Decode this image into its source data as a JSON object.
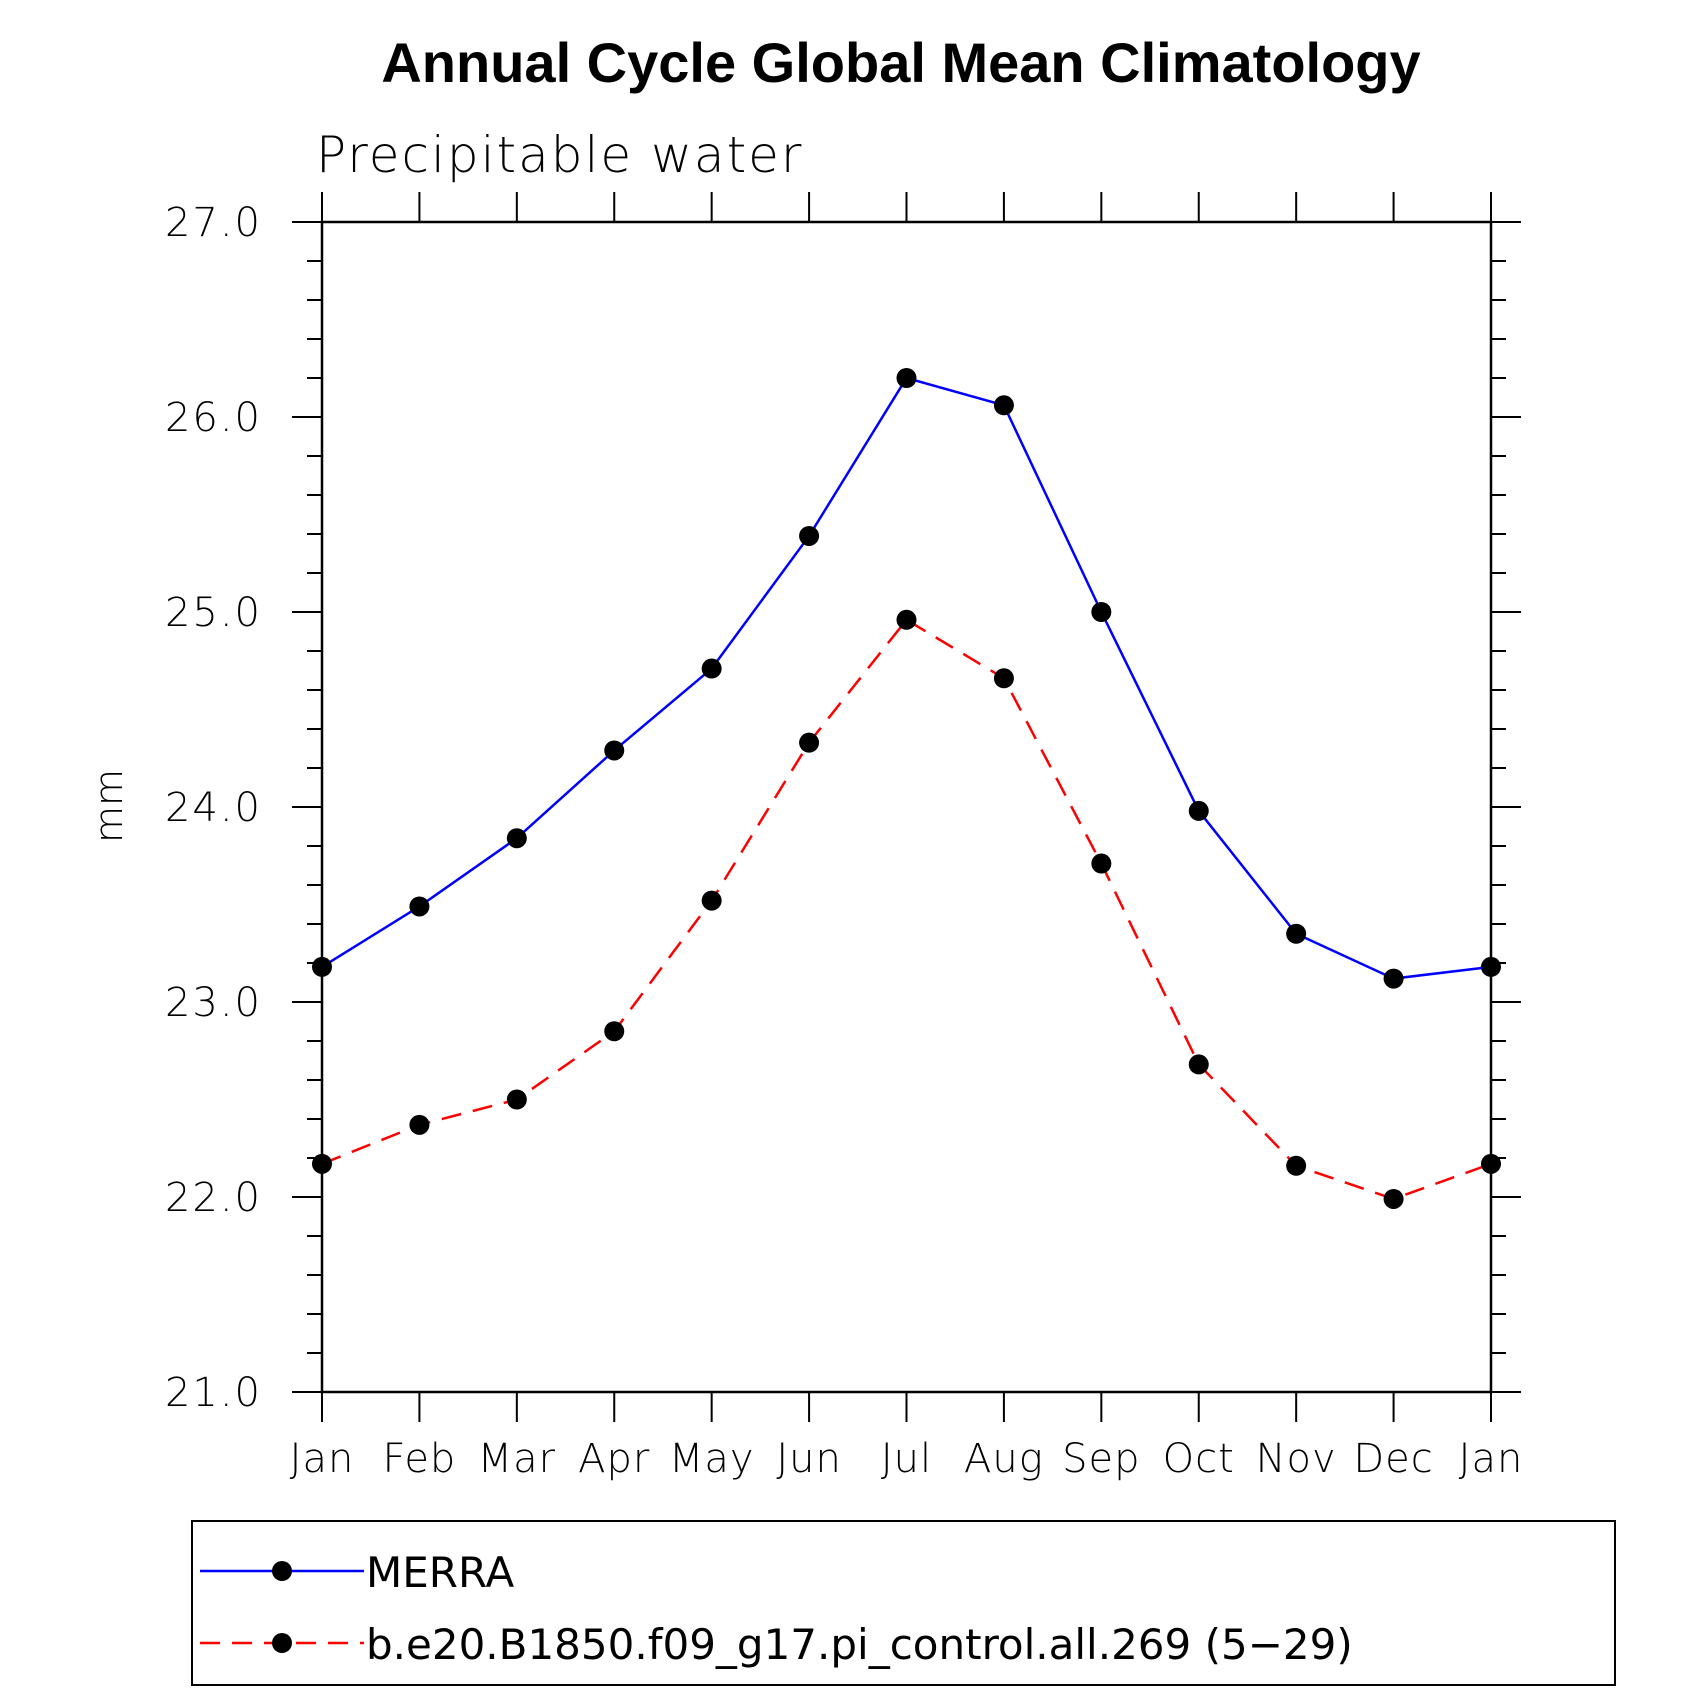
{
  "chart_data": {
    "type": "line",
    "title": "Annual Cycle Global Mean Climatology",
    "subtitle": "Precipitable water",
    "xlabel": "",
    "ylabel": "mm",
    "ylim": [
      21.0,
      27.0
    ],
    "yticks": [
      "21.0",
      "22.0",
      "23.0",
      "24.0",
      "25.0",
      "26.0",
      "27.0"
    ],
    "categories": [
      "Jan",
      "Feb",
      "Mar",
      "Apr",
      "May",
      "Jun",
      "Jul",
      "Aug",
      "Sep",
      "Oct",
      "Nov",
      "Dec",
      "Jan"
    ],
    "series": [
      {
        "name": "MERRA",
        "color": "#0000ff",
        "dash": "solid",
        "marker": "filled-circle",
        "values": [
          23.18,
          23.49,
          23.84,
          24.29,
          24.71,
          25.39,
          26.2,
          26.06,
          25.0,
          23.98,
          23.35,
          23.12,
          23.18
        ]
      },
      {
        "name": "b.e20.B1850.f09_g17.pi_control.all.269 (5−29)",
        "color": "#ff0000",
        "dash": "dashed",
        "marker": "filled-circle",
        "values": [
          22.17,
          22.37,
          22.5,
          22.85,
          23.52,
          24.33,
          24.96,
          24.66,
          23.71,
          22.68,
          22.16,
          21.99,
          22.17
        ]
      }
    ],
    "grid": false,
    "legend": "bottom"
  }
}
